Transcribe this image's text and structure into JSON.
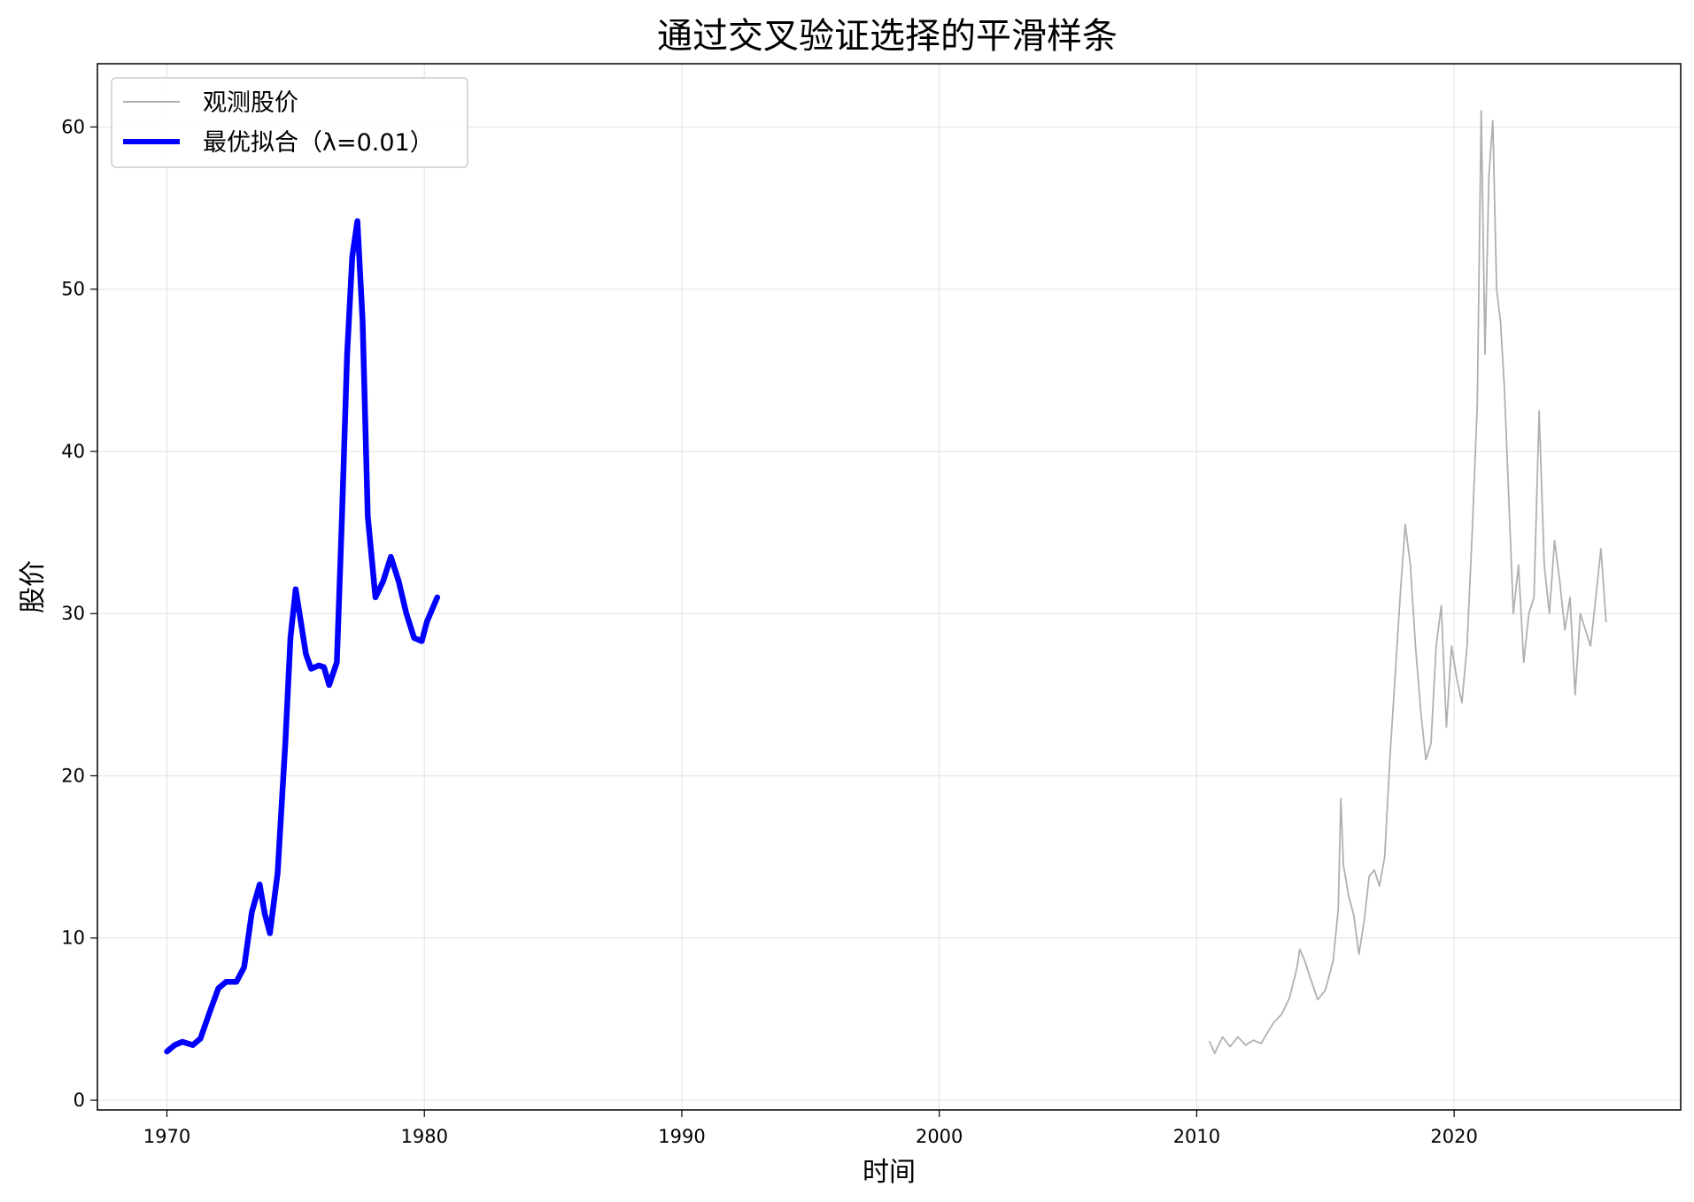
{
  "chart_data": {
    "type": "line",
    "title": "通过交叉验证选择的平滑样条",
    "xlabel": "时间",
    "ylabel": "股价",
    "xlim": [
      1967.3,
      2028.8
    ],
    "ylim": [
      -0.6,
      63.9
    ],
    "xticks": [
      1970,
      1980,
      1990,
      2000,
      2010,
      2020
    ],
    "yticks": [
      0,
      10,
      20,
      30,
      40,
      50,
      60
    ],
    "grid": true,
    "legend_position": "top-left",
    "series": [
      {
        "name": "观测股价",
        "color": "#b0b0b0",
        "points": [
          [
            2010.5,
            3.6
          ],
          [
            2010.7,
            2.9
          ],
          [
            2011.0,
            3.9
          ],
          [
            2011.3,
            3.3
          ],
          [
            2011.6,
            3.9
          ],
          [
            2011.9,
            3.4
          ],
          [
            2012.2,
            3.7
          ],
          [
            2012.5,
            3.5
          ],
          [
            2012.8,
            4.3
          ],
          [
            2013.0,
            4.8
          ],
          [
            2013.3,
            5.3
          ],
          [
            2013.6,
            6.3
          ],
          [
            2013.9,
            8.2
          ],
          [
            2014.0,
            9.3
          ],
          [
            2014.2,
            8.6
          ],
          [
            2014.4,
            7.6
          ],
          [
            2014.7,
            6.2
          ],
          [
            2015.0,
            6.8
          ],
          [
            2015.3,
            8.6
          ],
          [
            2015.5,
            11.8
          ],
          [
            2015.6,
            18.6
          ],
          [
            2015.7,
            14.5
          ],
          [
            2015.9,
            12.6
          ],
          [
            2016.1,
            11.4
          ],
          [
            2016.3,
            9.0
          ],
          [
            2016.5,
            11.0
          ],
          [
            2016.7,
            13.8
          ],
          [
            2016.9,
            14.2
          ],
          [
            2017.1,
            13.2
          ],
          [
            2017.3,
            15.0
          ],
          [
            2017.5,
            21.0
          ],
          [
            2017.7,
            26.0
          ],
          [
            2017.9,
            31.0
          ],
          [
            2018.1,
            35.5
          ],
          [
            2018.3,
            33.0
          ],
          [
            2018.5,
            28.0
          ],
          [
            2018.7,
            24.0
          ],
          [
            2018.9,
            21.0
          ],
          [
            2019.1,
            22.0
          ],
          [
            2019.3,
            28.0
          ],
          [
            2019.5,
            30.5
          ],
          [
            2019.7,
            23.0
          ],
          [
            2019.9,
            28.0
          ],
          [
            2020.1,
            26.0
          ],
          [
            2020.3,
            24.5
          ],
          [
            2020.5,
            28.0
          ],
          [
            2020.7,
            35.0
          ],
          [
            2020.9,
            43.0
          ],
          [
            2021.05,
            61.0
          ],
          [
            2021.2,
            46.0
          ],
          [
            2021.35,
            57.0
          ],
          [
            2021.5,
            60.4
          ],
          [
            2021.65,
            50.0
          ],
          [
            2021.8,
            48.0
          ],
          [
            2021.95,
            44.0
          ],
          [
            2022.1,
            38.0
          ],
          [
            2022.3,
            30.0
          ],
          [
            2022.5,
            33.0
          ],
          [
            2022.7,
            27.0
          ],
          [
            2022.9,
            30.0
          ],
          [
            2023.1,
            31.0
          ],
          [
            2023.3,
            42.5
          ],
          [
            2023.5,
            33.0
          ],
          [
            2023.7,
            30.0
          ],
          [
            2023.9,
            34.5
          ],
          [
            2024.1,
            32.0
          ],
          [
            2024.3,
            29.0
          ],
          [
            2024.5,
            31.0
          ],
          [
            2024.7,
            25.0
          ],
          [
            2024.9,
            30.0
          ],
          [
            2025.1,
            29.0
          ],
          [
            2025.3,
            28.0
          ],
          [
            2025.5,
            31.0
          ],
          [
            2025.7,
            34.0
          ],
          [
            2025.9,
            29.5
          ]
        ]
      },
      {
        "name": "最优拟合（λ=0.01）",
        "color": "#0000ff",
        "points": [
          [
            1970.0,
            3.0
          ],
          [
            1970.3,
            3.4
          ],
          [
            1970.6,
            3.6
          ],
          [
            1971.0,
            3.4
          ],
          [
            1971.3,
            3.8
          ],
          [
            1971.7,
            5.6
          ],
          [
            1972.0,
            6.9
          ],
          [
            1972.3,
            7.3
          ],
          [
            1972.7,
            7.3
          ],
          [
            1973.0,
            8.2
          ],
          [
            1973.3,
            11.6
          ],
          [
            1973.6,
            13.3
          ],
          [
            1973.8,
            11.5
          ],
          [
            1974.0,
            10.3
          ],
          [
            1974.3,
            14.0
          ],
          [
            1974.6,
            22.0
          ],
          [
            1974.8,
            28.5
          ],
          [
            1975.0,
            31.5
          ],
          [
            1975.2,
            29.5
          ],
          [
            1975.4,
            27.5
          ],
          [
            1975.6,
            26.6
          ],
          [
            1975.9,
            26.8
          ],
          [
            1976.1,
            26.7
          ],
          [
            1976.3,
            25.6
          ],
          [
            1976.6,
            27.0
          ],
          [
            1976.8,
            36.0
          ],
          [
            1977.0,
            46.0
          ],
          [
            1977.2,
            52.0
          ],
          [
            1977.4,
            54.2
          ],
          [
            1977.6,
            48.0
          ],
          [
            1977.8,
            36.0
          ],
          [
            1978.1,
            31.0
          ],
          [
            1978.4,
            32.0
          ],
          [
            1978.7,
            33.5
          ],
          [
            1979.0,
            32.0
          ],
          [
            1979.3,
            30.0
          ],
          [
            1979.6,
            28.5
          ],
          [
            1979.9,
            28.3
          ],
          [
            1980.1,
            29.5
          ],
          [
            1980.5,
            31.0
          ]
        ]
      }
    ]
  }
}
